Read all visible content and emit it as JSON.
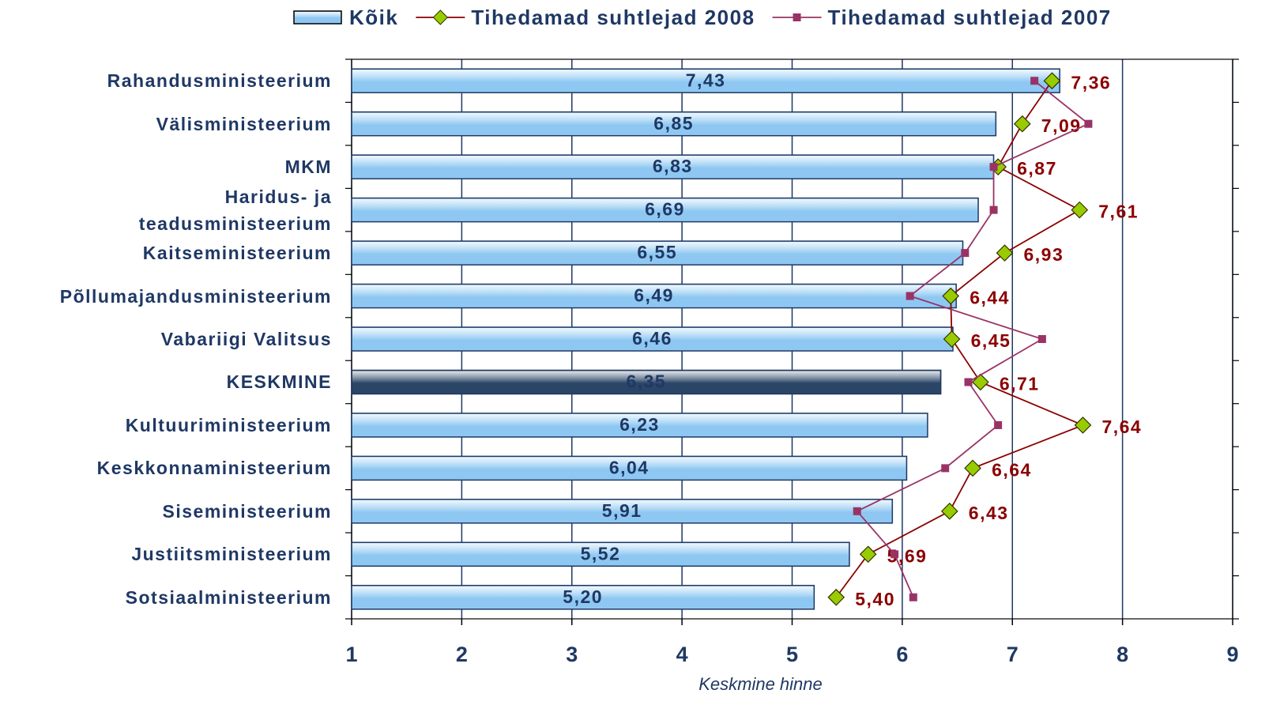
{
  "chart_data": {
    "type": "bar_line",
    "orientation": "horizontal",
    "legend": "top",
    "x_label": "Keskmine hinne",
    "categories": [
      "Rahandusministeerium",
      "Välisministeerium",
      "MKM",
      "Haridus- ja\nteadusministeerium",
      "Kaitseministeerium",
      "Põllumajandusministeerium",
      "Vabariigi Valitsus",
      "KESKMINE",
      "Kultuuriministeerium",
      "Keskkonnaministeerium",
      "Siseministeerium",
      "Justiitsministeerium",
      "Sotsiaalministeerium"
    ],
    "series": [
      {
        "name": "Kõik",
        "kind": "bar",
        "color": "#8ec8f2",
        "bar_colors": [
          "#8ec8f2",
          "#8ec8f2",
          "#8ec8f2",
          "#8ec8f2",
          "#8ec8f2",
          "#8ec8f2",
          "#8ec8f2",
          "#2a4566",
          "#8ec8f2",
          "#8ec8f2",
          "#8ec8f2",
          "#8ec8f2",
          "#8ec8f2"
        ],
        "values": [
          7.43,
          6.85,
          6.83,
          6.69,
          6.55,
          6.49,
          6.46,
          6.35,
          6.23,
          6.04,
          5.91,
          5.52,
          5.2
        ],
        "value_labels": [
          "7,43",
          "6,85",
          "6,83",
          "6,69",
          "6,55",
          "6,49",
          "6,46",
          "6,35",
          "6,23",
          "6,04",
          "5,91",
          "5,52",
          "5,20"
        ]
      },
      {
        "name": "Tihedamad suhtlejad 2008",
        "kind": "line",
        "marker": "diamond",
        "color": "#8b0000",
        "marker_color": "#99cc00",
        "values": [
          7.36,
          7.09,
          6.87,
          7.61,
          6.93,
          6.44,
          6.45,
          6.71,
          7.64,
          6.64,
          6.43,
          5.69,
          5.4
        ],
        "value_labels": [
          "7,36",
          "7,09",
          "6,87",
          "7,61",
          "6,93",
          "6,44",
          "6,45",
          "6,71",
          "7,64",
          "6,64",
          "6,43",
          "5,69",
          "5,40"
        ]
      },
      {
        "name": "Tihedamad suhtlejad 2007",
        "kind": "line",
        "marker": "square",
        "color": "#993366",
        "marker_color": "#993366",
        "values": [
          7.2,
          7.69,
          6.83,
          6.83,
          6.57,
          6.07,
          7.27,
          6.6,
          6.87,
          6.39,
          5.59,
          5.93,
          6.1
        ]
      }
    ],
    "xlim": [
      1,
      9
    ],
    "xticks": [
      1,
      2,
      3,
      4,
      5,
      6,
      7,
      8,
      9
    ],
    "grid": true
  }
}
